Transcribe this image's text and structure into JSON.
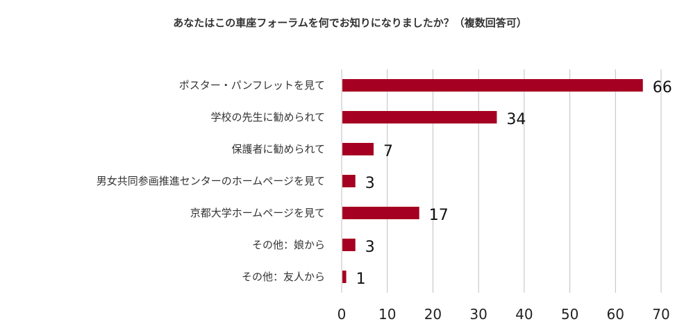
{
  "chart_data": {
    "type": "bar",
    "orientation": "horizontal",
    "title": "あなたはこの車座フォーラムを何でお知りになりましたか？（複数回答可）",
    "categories": [
      "ポスター・パンフレットを見て",
      "学校の先生に勧められて",
      "保護者に勧められて",
      "男女共同参画推進センターのホームページを見て",
      "京都大学ホームページを見て",
      "その他：娘から",
      "その他：友人から"
    ],
    "values": [
      66,
      34,
      7,
      3,
      17,
      3,
      1
    ],
    "xlim": [
      0,
      70
    ],
    "xticks": [
      0,
      10,
      20,
      30,
      40,
      50,
      60,
      70
    ],
    "grid": "vertical",
    "legend": "none",
    "colors": {
      "bar": "#A50021",
      "grid": "#bfbfbf",
      "axis": "#bfbfbf"
    }
  }
}
